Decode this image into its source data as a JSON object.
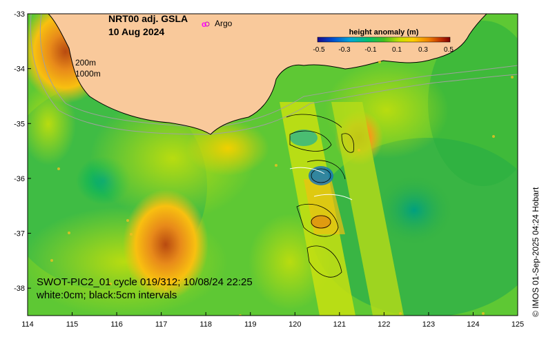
{
  "map": {
    "title": "NRT00 adj. GSLA",
    "date": "10 Aug 2024",
    "argo_legend": "Argo",
    "argo_marker": "o",
    "isobath_labels": [
      "200m",
      "1000m"
    ],
    "swot_pass": "SWOT-PIC2_01 cycle 019/312; 10/08/24 22:25",
    "contour_note": "white:0cm; black:5cm intervals",
    "credit": "© IMOS 01-Sep-2025 04:24 Hobart",
    "x_ticks": [
      "114",
      "115",
      "116",
      "117",
      "118",
      "119",
      "120",
      "121",
      "122",
      "123",
      "124",
      "125"
    ],
    "y_ticks": [
      "-33",
      "-34",
      "-35",
      "-36",
      "-37",
      "-38"
    ],
    "x_range": [
      114,
      125
    ],
    "y_range": [
      -38.5,
      -33
    ],
    "colorbar": {
      "title": "height anomaly (m)",
      "ticks": [
        "-0.5",
        "-0.3",
        "-0.1",
        "0.1",
        "0.3",
        "0.5"
      ],
      "range": [
        -0.5,
        0.5
      ],
      "colors": [
        "#1a0a8c",
        "#0050d0",
        "#00a8d8",
        "#00c070",
        "#40c020",
        "#c8e000",
        "#ffd000",
        "#f08000",
        "#c03000",
        "#800000"
      ]
    },
    "colors": {
      "land": "#f9c99b",
      "ocean_base": "#66cc33",
      "coast": "#000000",
      "isobath": "#a0a0a0",
      "argo": "#ff00ff"
    }
  }
}
